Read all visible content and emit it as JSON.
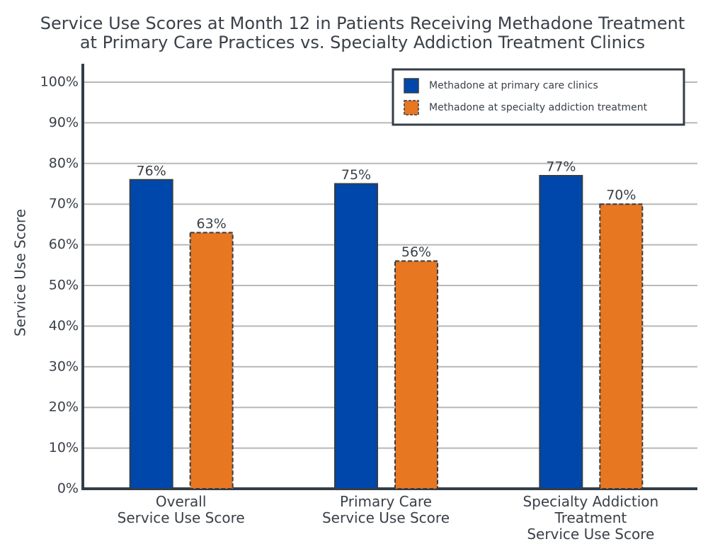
{
  "chart_data": {
    "type": "bar",
    "title": "Service Use Scores at Month 12 in Patients Receiving Methadone Treatment\nat Primary Care Practices vs. Specialty Addiction Treatment Clinics",
    "y_label": "Service Use Score",
    "categories": [
      "Overall\nService Use Score",
      "Primary Care\nService Use Score",
      "Specialty Addiction\nTreatment\nService Use Score"
    ],
    "series": [
      {
        "name": "Methadone at primary care clinics",
        "color": "#0047ab",
        "values": [
          76,
          75,
          77
        ],
        "value_labels": [
          "76%",
          "75%",
          "77%"
        ]
      },
      {
        "name": "Methadone at specialty addiction treatment",
        "color": "#e87722",
        "values": [
          63,
          56,
          70
        ],
        "value_labels": [
          "63%",
          "56%",
          "70%"
        ]
      }
    ],
    "ylim": [
      0,
      100
    ],
    "yticks": [
      {
        "value": 0,
        "label": "0%"
      },
      {
        "value": 10,
        "label": "10%"
      },
      {
        "value": 20,
        "label": "20%"
      },
      {
        "value": 30,
        "label": "30%"
      },
      {
        "value": 40,
        "label": "40%"
      },
      {
        "value": 50,
        "label": "50%"
      },
      {
        "value": 60,
        "label": "60%"
      },
      {
        "value": 70,
        "label": "70%"
      },
      {
        "value": 80,
        "label": "80%"
      },
      {
        "value": 90,
        "label": "90%"
      },
      {
        "value": 100,
        "label": "100%"
      }
    ],
    "grid": true,
    "legend": "top-right"
  }
}
